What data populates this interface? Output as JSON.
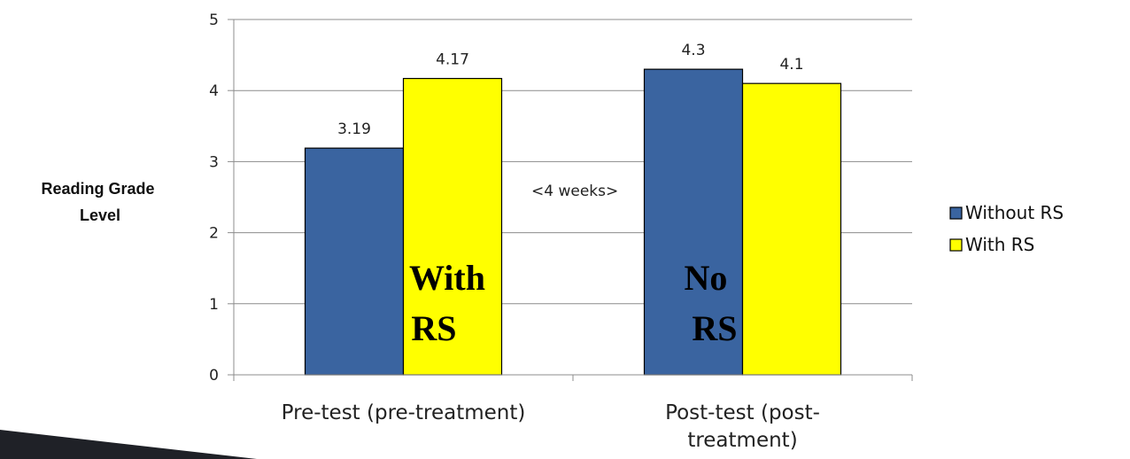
{
  "chart_data": {
    "type": "bar",
    "categories": [
      [
        "Pre-test (pre-treatment)"
      ],
      [
        "Post-test (post-",
        "treatment)"
      ]
    ],
    "series": [
      {
        "name": "Without RS",
        "color": "#3A64A0",
        "values": [
          3.19,
          4.3
        ],
        "labels": [
          "3.19",
          "4.3"
        ]
      },
      {
        "name": "With RS",
        "color": "#FFFF00",
        "values": [
          4.17,
          4.1
        ],
        "labels": [
          "4.17",
          "4.1"
        ]
      }
    ],
    "ylabel": [
      "Reading Grade",
      "Level"
    ],
    "ylim": [
      0,
      5
    ],
    "yticks": [
      0,
      1,
      2,
      3,
      4,
      5
    ],
    "grid": true,
    "legend_position": "right",
    "annotations": {
      "gap": "<4 weeks>",
      "bar_text": [
        [
          "With",
          "RS"
        ],
        [
          "No",
          "RS"
        ]
      ]
    }
  },
  "decoration": {
    "corner_band_color": "#1F2127"
  }
}
